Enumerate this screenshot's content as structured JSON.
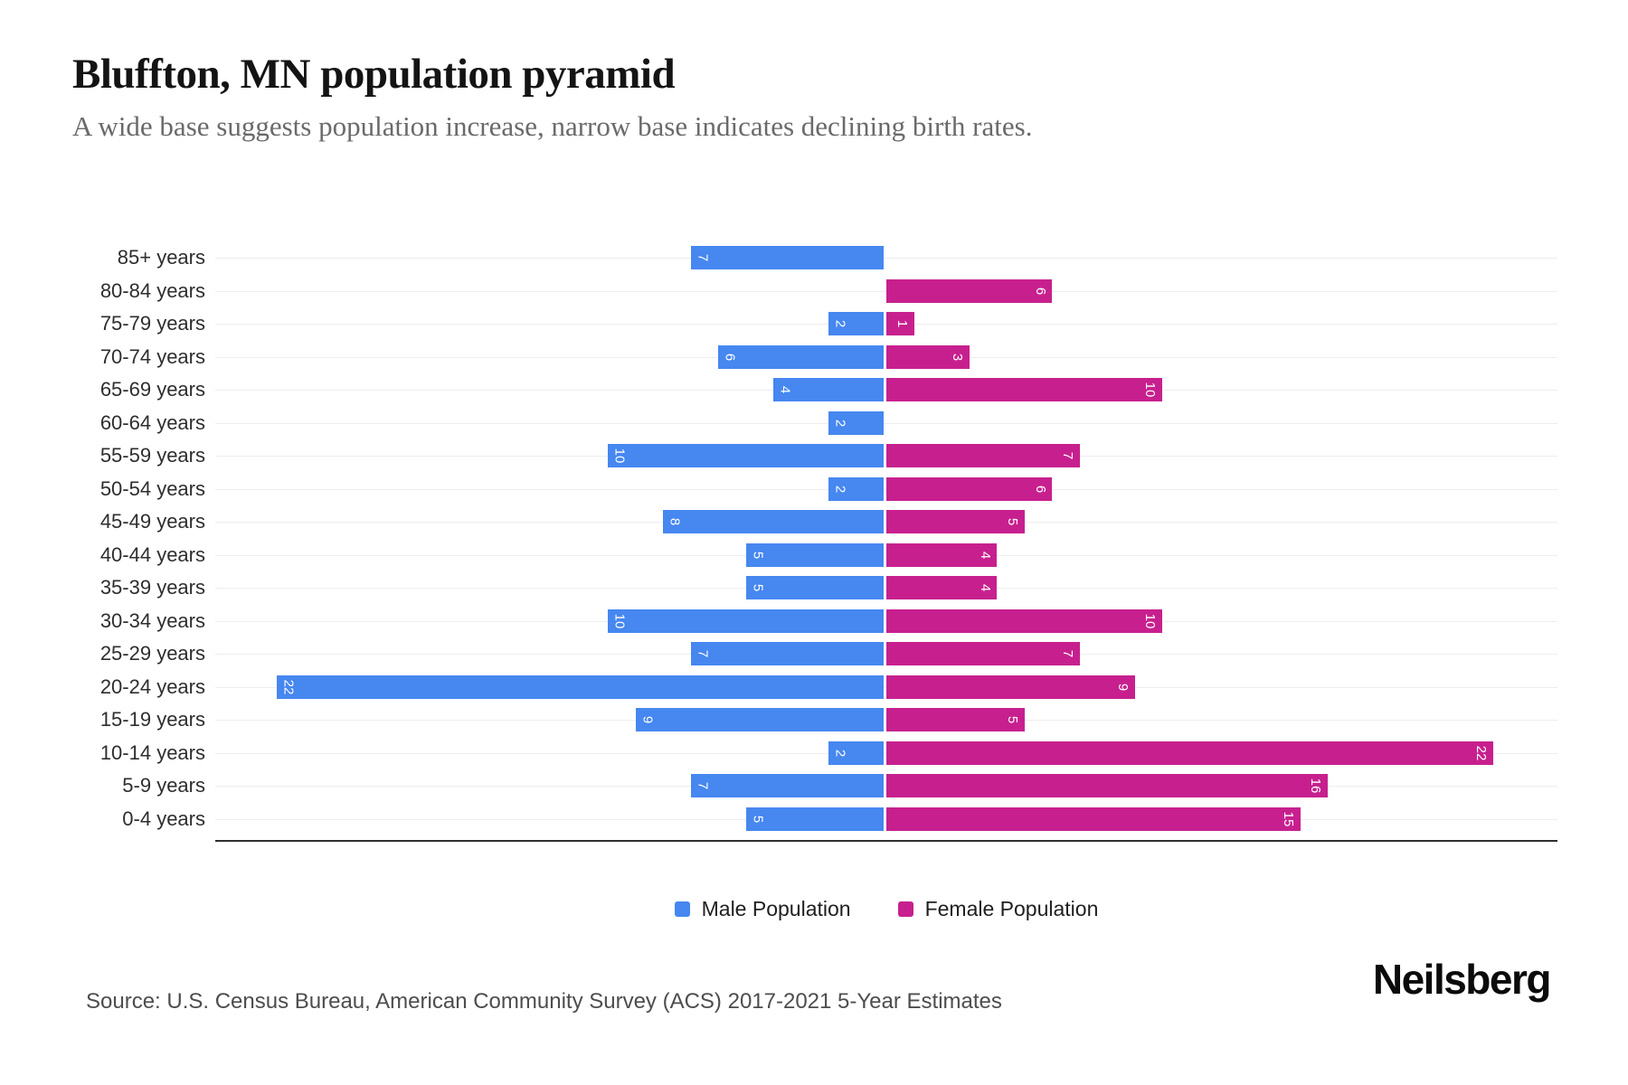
{
  "title": "Bluffton, MN population pyramid",
  "subtitle": "A wide base suggests population increase, narrow base indicates declining birth rates.",
  "source": "Source: U.S. Census Bureau, American Community Survey (ACS) 2017-2021 5-Year Estimates",
  "brand": "Neilsberg",
  "colors": {
    "male": "#4687f0",
    "female": "#c7208e",
    "gridline": "#ededed",
    "axis": "#2e2e2e"
  },
  "legend": {
    "position": "bottom",
    "items": [
      {
        "label": "Male Population",
        "color": "#4687f0"
      },
      {
        "label": "Female Population",
        "color": "#c7208e"
      }
    ]
  },
  "chart_data": {
    "type": "bar",
    "variant": "population-pyramid",
    "orientation": "horizontal",
    "title": "Bluffton, MN population pyramid",
    "xlabel": "",
    "ylabel": "",
    "grid": true,
    "legend_position": "bottom",
    "x_axis": {
      "tick_labels_visible": false,
      "max_per_side": 24
    },
    "categories": [
      "85+ years",
      "80-84 years",
      "75-79 years",
      "70-74 years",
      "65-69 years",
      "60-64 years",
      "55-59 years",
      "50-54 years",
      "45-49 years",
      "40-44 years",
      "35-39 years",
      "30-34 years",
      "25-29 years",
      "20-24 years",
      "15-19 years",
      "10-14 years",
      "5-9 years",
      "0-4 years"
    ],
    "series": [
      {
        "name": "Male Population",
        "side": "left",
        "color": "#4687f0",
        "values": [
          7,
          0,
          2,
          6,
          4,
          2,
          10,
          2,
          8,
          5,
          5,
          10,
          7,
          22,
          9,
          2,
          7,
          5
        ]
      },
      {
        "name": "Female Population",
        "side": "right",
        "color": "#c7208e",
        "values": [
          0,
          6,
          1,
          3,
          10,
          0,
          7,
          6,
          5,
          4,
          4,
          10,
          7,
          9,
          5,
          22,
          16,
          15
        ]
      }
    ],
    "value_labels": "shown inside bars, rotated 90deg, white"
  }
}
